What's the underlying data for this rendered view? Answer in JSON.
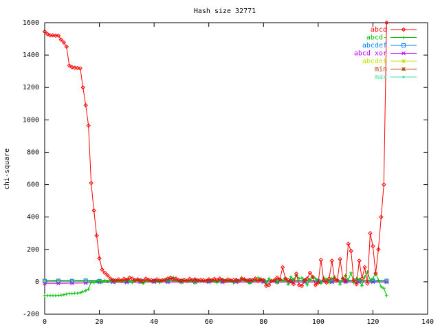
{
  "chart_data": {
    "type": "line",
    "title": "Hash size 32771",
    "xlabel": "",
    "ylabel": "chi-square",
    "xlim": [
      0,
      140
    ],
    "ylim": [
      -200,
      1600
    ],
    "xticks": [
      0,
      20,
      40,
      60,
      80,
      100,
      120,
      140
    ],
    "yticks": [
      -200,
      0,
      200,
      400,
      600,
      800,
      1000,
      1200,
      1400,
      1600
    ],
    "grid": false,
    "legend_position": "top-right",
    "series": [
      {
        "name": "abcd",
        "color": "#ff0000",
        "marker": "diamond",
        "x": [
          0,
          1,
          2,
          3,
          4,
          5,
          6,
          7,
          8,
          9,
          10,
          11,
          12,
          13,
          14,
          15,
          16,
          17,
          18,
          19,
          20,
          21,
          22,
          23,
          24,
          25,
          26,
          27,
          28,
          29,
          30,
          31,
          32,
          33,
          34,
          35,
          36,
          37,
          38,
          39,
          40,
          41,
          42,
          43,
          44,
          45,
          46,
          47,
          48,
          49,
          50,
          51,
          52,
          53,
          54,
          55,
          56,
          57,
          58,
          59,
          60,
          61,
          62,
          63,
          64,
          65,
          66,
          67,
          68,
          69,
          70,
          71,
          72,
          73,
          74,
          75,
          76,
          77,
          78,
          79,
          80,
          81,
          82,
          83,
          84,
          85,
          86,
          87,
          88,
          89,
          90,
          91,
          92,
          93,
          94,
          95,
          96,
          97,
          98,
          99,
          100,
          101,
          102,
          103,
          104,
          105,
          106,
          107,
          108,
          109,
          110,
          111,
          112,
          113,
          114,
          115,
          116,
          117,
          118,
          119,
          120,
          121,
          122,
          123,
          124,
          125
        ],
        "values": [
          1545,
          1530,
          1522,
          1522,
          1520,
          1520,
          1495,
          1478,
          1452,
          1335,
          1325,
          1322,
          1320,
          1318,
          1200,
          1090,
          965,
          610,
          440,
          285,
          145,
          75,
          55,
          40,
          20,
          10,
          8,
          15,
          5,
          18,
          12,
          25,
          20,
          10,
          15,
          8,
          5,
          20,
          12,
          10,
          5,
          15,
          8,
          10,
          12,
          20,
          25,
          15,
          20,
          10,
          8,
          12,
          5,
          18,
          10,
          15,
          8,
          12,
          10,
          5,
          15,
          8,
          18,
          10,
          20,
          12,
          5,
          15,
          8,
          10,
          12,
          5,
          20,
          15,
          8,
          12,
          10,
          20,
          5,
          15,
          10,
          -25,
          -20,
          5,
          10,
          25,
          15,
          90,
          20,
          10,
          5,
          -15,
          50,
          -20,
          -25,
          10,
          20,
          55,
          30,
          -20,
          -5,
          135,
          10,
          -5,
          20,
          130,
          15,
          10,
          140,
          20,
          5,
          235,
          190,
          10,
          -15,
          130,
          20,
          90,
          -10,
          300,
          220,
          50,
          200,
          400,
          600,
          1600
        ]
      },
      {
        "name": "abcd-",
        "color": "#00c000",
        "marker": "plus",
        "x": [
          0,
          1,
          2,
          3,
          4,
          5,
          6,
          7,
          8,
          9,
          10,
          11,
          12,
          13,
          14,
          15,
          16,
          17,
          18,
          19,
          20,
          21,
          22,
          23,
          24,
          25,
          26,
          27,
          28,
          29,
          30,
          31,
          32,
          33,
          34,
          35,
          36,
          37,
          38,
          39,
          40,
          41,
          42,
          43,
          44,
          45,
          46,
          47,
          48,
          49,
          50,
          51,
          52,
          53,
          54,
          55,
          56,
          57,
          58,
          59,
          60,
          61,
          62,
          63,
          64,
          65,
          66,
          67,
          68,
          69,
          70,
          71,
          72,
          73,
          74,
          75,
          76,
          77,
          78,
          79,
          80,
          81,
          82,
          83,
          84,
          85,
          86,
          87,
          88,
          89,
          90,
          91,
          92,
          93,
          94,
          95,
          96,
          97,
          98,
          99,
          100,
          101,
          102,
          103,
          104,
          105,
          106,
          107,
          108,
          109,
          110,
          111,
          112,
          113,
          114,
          115,
          116,
          117,
          118,
          119,
          120,
          121,
          122,
          123,
          124,
          125
        ],
        "values": [
          -85,
          -85,
          -85,
          -85,
          -85,
          -84,
          -82,
          -80,
          -76,
          -72,
          -72,
          -70,
          -70,
          -68,
          -60,
          -55,
          -45,
          0,
          -5,
          2,
          5,
          -3,
          8,
          2,
          5,
          10,
          -2,
          5,
          8,
          2,
          12,
          5,
          -5,
          8,
          10,
          2,
          -10,
          5,
          8,
          2,
          10,
          5,
          -5,
          8,
          12,
          5,
          20,
          28,
          10,
          5,
          -5,
          8,
          10,
          2,
          5,
          -8,
          10,
          5,
          2,
          8,
          5,
          10,
          2,
          -5,
          8,
          12,
          5,
          2,
          10,
          -5,
          8,
          5,
          20,
          15,
          2,
          -10,
          5,
          10,
          25,
          15,
          8,
          -10,
          20,
          5,
          10,
          -5,
          15,
          8,
          20,
          -15,
          30,
          15,
          40,
          20,
          25,
          10,
          -20,
          15,
          30,
          20,
          5,
          -10,
          25,
          15,
          -5,
          20,
          30,
          10,
          -15,
          20,
          40,
          10,
          55,
          -5,
          20,
          15,
          -25,
          30,
          60,
          10,
          20,
          55,
          10,
          -30,
          -40,
          -85
        ]
      },
      {
        "name": "abcdef",
        "color": "#0080ff",
        "marker": "square",
        "x": [
          0,
          5,
          10,
          15,
          20,
          25,
          30,
          35,
          40,
          45,
          50,
          55,
          60,
          65,
          70,
          75,
          80,
          85,
          90,
          95,
          100,
          105,
          110,
          115,
          120,
          125
        ],
        "values": [
          5,
          6,
          5,
          7,
          5,
          6,
          5,
          7,
          5,
          6,
          5,
          7,
          5,
          6,
          5,
          7,
          5,
          6,
          5,
          7,
          5,
          6,
          5,
          7,
          5,
          6
        ]
      },
      {
        "name": "abcd xor",
        "color": "#c000ff",
        "marker": "cross",
        "x": [
          0,
          5,
          10,
          15,
          20,
          25,
          30,
          35,
          40,
          45,
          50,
          55,
          60,
          65,
          70,
          75,
          80,
          85,
          90,
          95,
          100,
          105,
          110,
          115,
          120,
          125
        ],
        "values": [
          -10,
          -10,
          -9,
          -8,
          -3,
          -2,
          -3,
          -2,
          -1,
          -2,
          -1,
          -2,
          -1,
          -2,
          -1,
          -2,
          -1,
          -2,
          -1,
          -2,
          -1,
          -2,
          -1,
          -2,
          -1,
          -2
        ]
      },
      {
        "name": "abcdef",
        "color": "#c0e000",
        "marker": "star",
        "x": [
          0,
          5,
          10,
          15,
          20,
          25,
          30,
          35,
          40,
          45,
          50,
          55,
          60,
          65,
          70,
          75,
          80,
          85,
          90,
          95,
          100,
          105,
          110,
          115,
          120,
          125
        ],
        "values": [
          2,
          3,
          2,
          3,
          2,
          3,
          2,
          3,
          2,
          3,
          2,
          3,
          2,
          3,
          2,
          3,
          2,
          3,
          2,
          3,
          2,
          3,
          2,
          3,
          2,
          3
        ]
      },
      {
        "name": "min",
        "color": "#b04000",
        "marker": "asterisk",
        "x": [
          0,
          5,
          10,
          15,
          20,
          25,
          30,
          35,
          40,
          45,
          50,
          55,
          60,
          65,
          70,
          75,
          80,
          85,
          90,
          95,
          100,
          105,
          110,
          115,
          120,
          125
        ],
        "values": [
          0,
          0,
          0,
          0,
          0,
          0,
          0,
          0,
          0,
          0,
          0,
          0,
          0,
          0,
          0,
          0,
          0,
          0,
          0,
          0,
          0,
          0,
          0,
          0,
          0,
          0
        ]
      },
      {
        "name": "max",
        "color": "#40e0a0",
        "marker": "dot",
        "x": [
          0,
          5,
          10,
          15,
          20,
          25,
          30,
          35,
          40,
          45,
          50,
          55,
          60,
          65,
          70,
          75,
          80,
          85,
          90,
          95,
          100,
          105,
          110,
          115,
          120,
          125
        ],
        "values": [
          10,
          10,
          10,
          10,
          10,
          10,
          10,
          10,
          10,
          10,
          10,
          10,
          10,
          10,
          10,
          10,
          10,
          10,
          10,
          10,
          10,
          10,
          10,
          10,
          10,
          10
        ]
      }
    ]
  }
}
